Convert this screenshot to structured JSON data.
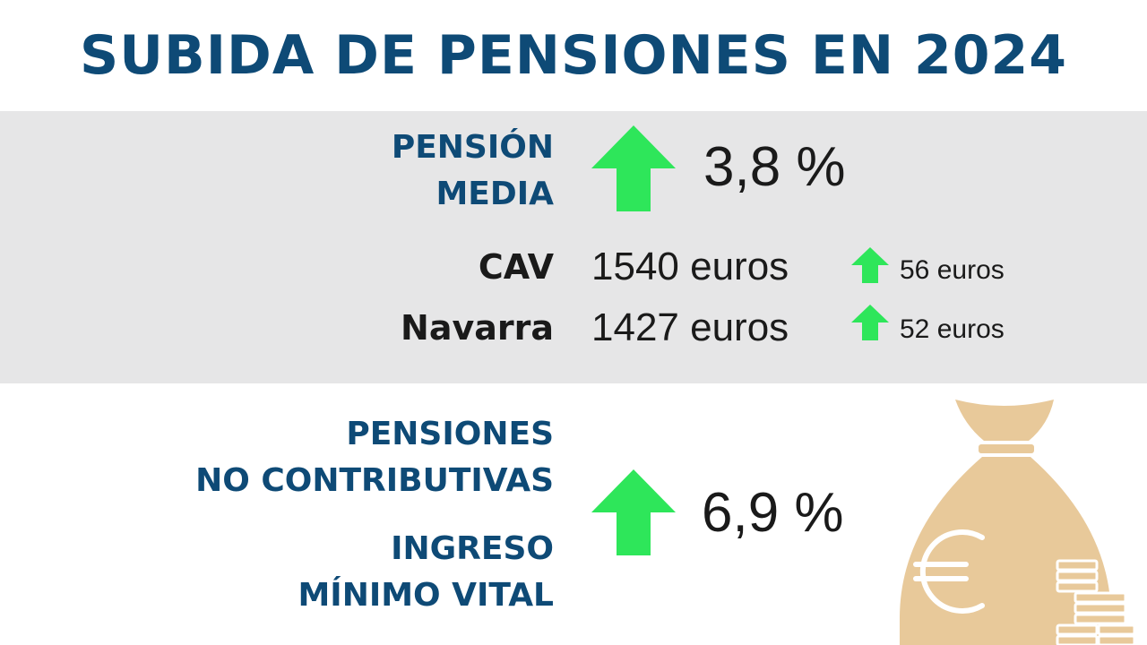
{
  "title": "SUBIDA DE PENSIONES EN 2024",
  "pension_media": {
    "label_line1": "PENSIÓN",
    "label_line2": "MEDIA",
    "increase": "3,8 %"
  },
  "regions": [
    {
      "name": "CAV",
      "amount": "1540 euros",
      "increase": "56 euros"
    },
    {
      "name": "Navarra",
      "amount": "1427 euros",
      "increase": "52 euros"
    }
  ],
  "no_contributivas": {
    "label_line1": "PENSIONES",
    "label_line2": "NO CONTRIBUTIVAS",
    "label_line3": "INGRESO",
    "label_line4": "MÍNIMO VITAL",
    "increase": "6,9 %"
  },
  "colors": {
    "title_blue": "#0e4a76",
    "arrow_green": "#2ee65a",
    "band_gray": "#e6e6e7",
    "bag_tan": "#e8c99a"
  },
  "icons": [
    "up-arrow-icon",
    "money-bag-icon",
    "euro-icon",
    "coins-icon"
  ]
}
